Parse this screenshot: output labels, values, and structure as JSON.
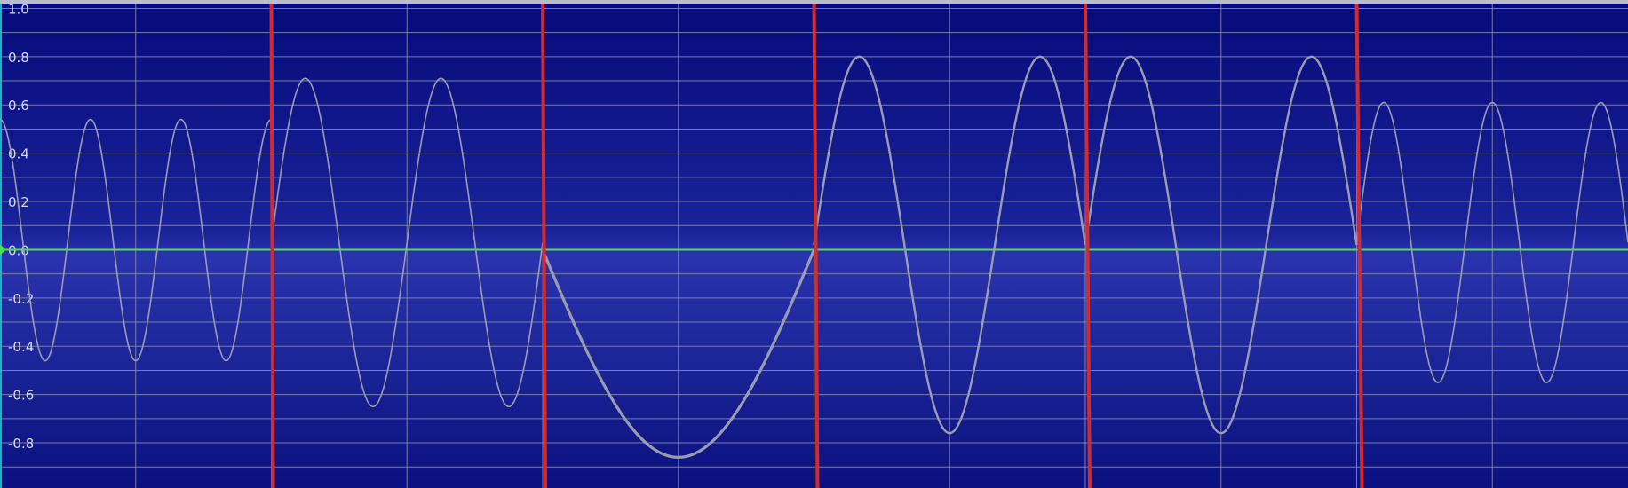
{
  "chart_data": {
    "type": "line",
    "title": "",
    "xlabel": "",
    "ylabel": "",
    "ylim": [
      -0.98,
      1.02
    ],
    "xlim": [
      0,
      30
    ],
    "y_ticks": [
      1.0,
      0.8,
      0.6,
      0.4,
      0.2,
      0.0,
      -0.2,
      -0.4,
      -0.6,
      -0.8
    ],
    "y_tick_labels": [
      "1.0",
      "0.8",
      "0.6",
      "0.4",
      "0.2",
      "0.0",
      "-0.2",
      "-0.4",
      "-0.6",
      "-0.8"
    ],
    "grid": true,
    "baseline_y": 0.0,
    "segments": [
      {
        "x0": 0,
        "x1": 5,
        "cycles": 3,
        "phase": 0.25,
        "mean": 0.04,
        "amp": 0.5
      },
      {
        "x0": 5,
        "x1": 10,
        "cycles": 2,
        "phase": 0.0,
        "mean": 0.03,
        "amp": 0.68
      },
      {
        "x0": 10,
        "x1": 15,
        "cycles": 0.5,
        "phase": 0.5,
        "mean": 0.0,
        "amp": 0.86
      },
      {
        "x0": 15,
        "x1": 20,
        "cycles": 1.5,
        "phase": 0.0,
        "mean": 0.02,
        "amp": 0.78
      },
      {
        "x0": 20,
        "x1": 25,
        "cycles": 1.5,
        "phase": 0.0,
        "mean": 0.02,
        "amp": 0.78
      },
      {
        "x0": 25,
        "x1": 30,
        "cycles": 2.5,
        "phase": 0.0,
        "mean": 0.03,
        "amp": 0.58
      }
    ],
    "markers_x": [
      5,
      10,
      15,
      20,
      25
    ],
    "colors": {
      "waveform": "#9a9cb2",
      "baseline": "#4ee04e",
      "markers": "#d42a2e",
      "grid": "#8b8fae",
      "ruler": "#16b6c9"
    }
  }
}
